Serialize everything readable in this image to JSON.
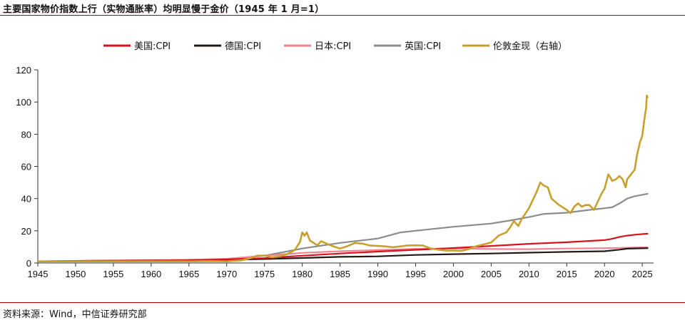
{
  "header": {
    "title": "主要国家物价指数上行（实物通胀率）均明显慢于金价（1945 年 1 月=1）"
  },
  "footer": {
    "source": "资料来源：Wind，中信证券研究部"
  },
  "colors": {
    "rule": "#c00000"
  },
  "chart_data": {
    "type": "line",
    "title": "主要国家物价指数上行（实物通胀率）均明显慢于金价（1945 年 1 月=1）",
    "xlabel": "",
    "ylabel": "",
    "xlim": [
      1945,
      2026.5
    ],
    "ylim": [
      0,
      120
    ],
    "x_ticks": [
      1945,
      1950,
      1955,
      1960,
      1965,
      1970,
      1975,
      1980,
      1985,
      1990,
      1995,
      2000,
      2005,
      2010,
      2015,
      2020,
      2025
    ],
    "y_ticks": [
      0,
      20,
      40,
      60,
      80,
      100,
      120
    ],
    "grid": false,
    "legend_position": "top",
    "series": [
      {
        "name": "美国:CPI",
        "color": "#d7141d",
        "width": 2.2,
        "points": [
          [
            1945,
            1.0
          ],
          [
            1950,
            1.3
          ],
          [
            1955,
            1.5
          ],
          [
            1960,
            1.6
          ],
          [
            1965,
            1.7
          ],
          [
            1970,
            2.2
          ],
          [
            1975,
            3.0
          ],
          [
            1980,
            4.5
          ],
          [
            1985,
            5.9
          ],
          [
            1990,
            7.1
          ],
          [
            1995,
            8.2
          ],
          [
            2000,
            9.3
          ],
          [
            2005,
            10.6
          ],
          [
            2010,
            11.9
          ],
          [
            2015,
            12.9
          ],
          [
            2020,
            14.2
          ],
          [
            2021,
            15.0
          ],
          [
            2022,
            16.2
          ],
          [
            2023,
            17.0
          ],
          [
            2024,
            17.6
          ],
          [
            2025.7,
            18.2
          ]
        ]
      },
      {
        "name": "德国:CPI",
        "color": "#231815",
        "width": 2.2,
        "points": [
          [
            1945,
            1.0
          ],
          [
            1950,
            1.2
          ],
          [
            1955,
            1.3
          ],
          [
            1960,
            1.4
          ],
          [
            1965,
            1.6
          ],
          [
            1970,
            1.9
          ],
          [
            1975,
            2.5
          ],
          [
            1980,
            3.1
          ],
          [
            1985,
            3.8
          ],
          [
            1990,
            4.1
          ],
          [
            1995,
            5.0
          ],
          [
            2000,
            5.5
          ],
          [
            2005,
            5.9
          ],
          [
            2010,
            6.4
          ],
          [
            2015,
            6.9
          ],
          [
            2020,
            7.3
          ],
          [
            2022,
            8.3
          ],
          [
            2023,
            8.9
          ],
          [
            2025.7,
            9.2
          ]
        ]
      },
      {
        "name": "日本:CPI",
        "color": "#f2828f",
        "width": 2.2,
        "points": [
          [
            1945,
            0.9
          ],
          [
            1950,
            1.1
          ],
          [
            1955,
            1.3
          ],
          [
            1960,
            1.4
          ],
          [
            1965,
            2.0
          ],
          [
            1970,
            2.6
          ],
          [
            1975,
            4.5
          ],
          [
            1980,
            6.3
          ],
          [
            1985,
            7.3
          ],
          [
            1990,
            8.0
          ],
          [
            1995,
            8.8
          ],
          [
            2000,
            9.0
          ],
          [
            2005,
            8.7
          ],
          [
            2010,
            8.6
          ],
          [
            2015,
            9.0
          ],
          [
            2020,
            9.2
          ],
          [
            2022,
            9.4
          ],
          [
            2025.7,
            9.8
          ]
        ]
      },
      {
        "name": "英国:CPI",
        "color": "#8c8c8c",
        "width": 2.2,
        "points": [
          [
            1945,
            1.0
          ],
          [
            1950,
            1.3
          ],
          [
            1955,
            1.5
          ],
          [
            1960,
            1.7
          ],
          [
            1965,
            2.0
          ],
          [
            1970,
            2.5
          ],
          [
            1975,
            4.5
          ],
          [
            1980,
            9.0
          ],
          [
            1985,
            12.5
          ],
          [
            1990,
            15.2
          ],
          [
            1993,
            19.0
          ],
          [
            1995,
            20.0
          ],
          [
            2000,
            22.5
          ],
          [
            2005,
            24.5
          ],
          [
            2008,
            26.8
          ],
          [
            2010,
            28.5
          ],
          [
            2012,
            30.5
          ],
          [
            2015,
            31.2
          ],
          [
            2018,
            33.0
          ],
          [
            2020,
            34.0
          ],
          [
            2021,
            34.6
          ],
          [
            2022,
            37.0
          ],
          [
            2023,
            40.0
          ],
          [
            2024,
            41.5
          ],
          [
            2025.7,
            43.0
          ]
        ]
      },
      {
        "name": "伦敦金现（右轴）",
        "color": "#c8a02d",
        "width": 2.6,
        "points": [
          [
            1945,
            1.0
          ],
          [
            1950,
            1.0
          ],
          [
            1955,
            1.0
          ],
          [
            1960,
            1.0
          ],
          [
            1965,
            1.0
          ],
          [
            1968,
            1.2
          ],
          [
            1970,
            1.0
          ],
          [
            1972,
            1.7
          ],
          [
            1973,
            2.8
          ],
          [
            1974,
            4.5
          ],
          [
            1975,
            4.6
          ],
          [
            1976,
            3.5
          ],
          [
            1977,
            4.2
          ],
          [
            1978,
            5.5
          ],
          [
            1979,
            8.0
          ],
          [
            1979.7,
            13.0
          ],
          [
            1980.0,
            19.0
          ],
          [
            1980.3,
            17.0
          ],
          [
            1980.6,
            19.0
          ],
          [
            1981,
            14.0
          ],
          [
            1982,
            11.0
          ],
          [
            1982.5,
            13.5
          ],
          [
            1983,
            12.5
          ],
          [
            1984,
            10.5
          ],
          [
            1985,
            9.0
          ],
          [
            1986,
            10.5
          ],
          [
            1987,
            12.5
          ],
          [
            1988,
            12.0
          ],
          [
            1989,
            10.8
          ],
          [
            1990,
            10.6
          ],
          [
            1991,
            10.3
          ],
          [
            1992,
            9.8
          ],
          [
            1993,
            10.3
          ],
          [
            1994,
            10.9
          ],
          [
            1995,
            11.0
          ],
          [
            1996,
            10.8
          ],
          [
            1997,
            9.0
          ],
          [
            1998,
            8.3
          ],
          [
            1999,
            7.7
          ],
          [
            2000,
            7.7
          ],
          [
            2001,
            7.5
          ],
          [
            2002,
            8.6
          ],
          [
            2003,
            10.4
          ],
          [
            2004,
            11.5
          ],
          [
            2005,
            12.7
          ],
          [
            2006,
            17.0
          ],
          [
            2007,
            19.0
          ],
          [
            2007.5,
            22.0
          ],
          [
            2008,
            26.0
          ],
          [
            2008.6,
            23.0
          ],
          [
            2009,
            27.0
          ],
          [
            2010,
            34.0
          ],
          [
            2011,
            44.0
          ],
          [
            2011.5,
            50.0
          ],
          [
            2012,
            48.0
          ],
          [
            2012.5,
            47.0
          ],
          [
            2013,
            40.0
          ],
          [
            2014,
            36.0
          ],
          [
            2015,
            33.0
          ],
          [
            2015.5,
            31.0
          ],
          [
            2016,
            35.0
          ],
          [
            2016.5,
            37.0
          ],
          [
            2017,
            35.0
          ],
          [
            2017.5,
            36.0
          ],
          [
            2018,
            36.0
          ],
          [
            2018.6,
            33.0
          ],
          [
            2019,
            37.0
          ],
          [
            2019.6,
            43.0
          ],
          [
            2020,
            46.0
          ],
          [
            2020.5,
            55.0
          ],
          [
            2020.8,
            53.0
          ],
          [
            2021,
            51.0
          ],
          [
            2021.5,
            52.0
          ],
          [
            2022,
            54.0
          ],
          [
            2022.4,
            52.0
          ],
          [
            2022.8,
            47.0
          ],
          [
            2023,
            52.0
          ],
          [
            2023.5,
            55.0
          ],
          [
            2024,
            58.0
          ],
          [
            2024.3,
            67.0
          ],
          [
            2024.7,
            75.0
          ],
          [
            2025,
            79.0
          ],
          [
            2025.3,
            90.0
          ],
          [
            2025.5,
            96.0
          ],
          [
            2025.6,
            104.0
          ],
          [
            2025.7,
            103.0
          ]
        ]
      }
    ]
  }
}
